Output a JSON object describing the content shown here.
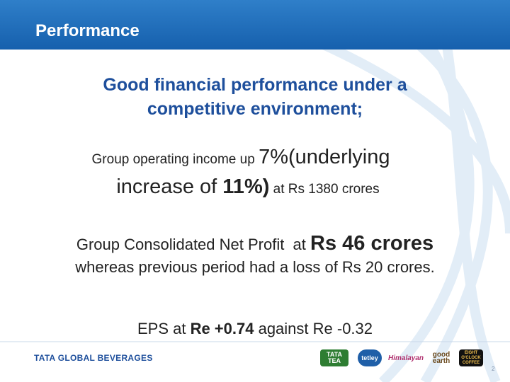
{
  "header": {
    "title": "Performance"
  },
  "headline": {
    "lines": [
      "Good financial performance under a",
      "competitive environment;"
    ]
  },
  "points": [
    {
      "lines": [
        [
          {
            "text": "Group operating income up "
          },
          {
            "text": "7%(underlying"
          }
        ],
        [
          {
            "text": "increase of "
          },
          {
            "text": "11%)"
          },
          {
            "text": " at Rs 1380 crores"
          }
        ]
      ]
    },
    {
      "lines": [
        [
          {
            "text": "Group Consolidated Net Profit  at "
          },
          {
            "text": "Rs 46 crores"
          }
        ],
        [
          {
            "text": "whereas previous period had a loss of Rs 20 crores."
          }
        ]
      ]
    },
    {
      "lines": [
        [
          {
            "text": "EPS at "
          },
          {
            "text": "Re +0.74"
          },
          {
            "text": " against Re -0.32"
          }
        ]
      ]
    }
  ],
  "footer": {
    "company": "TATA GLOBAL BEVERAGES",
    "brands": [
      "TATA TEA",
      "tetley",
      "Himalayan",
      "good earth",
      "EIGHT O'CLOCK COFFEE"
    ],
    "page": "2"
  }
}
